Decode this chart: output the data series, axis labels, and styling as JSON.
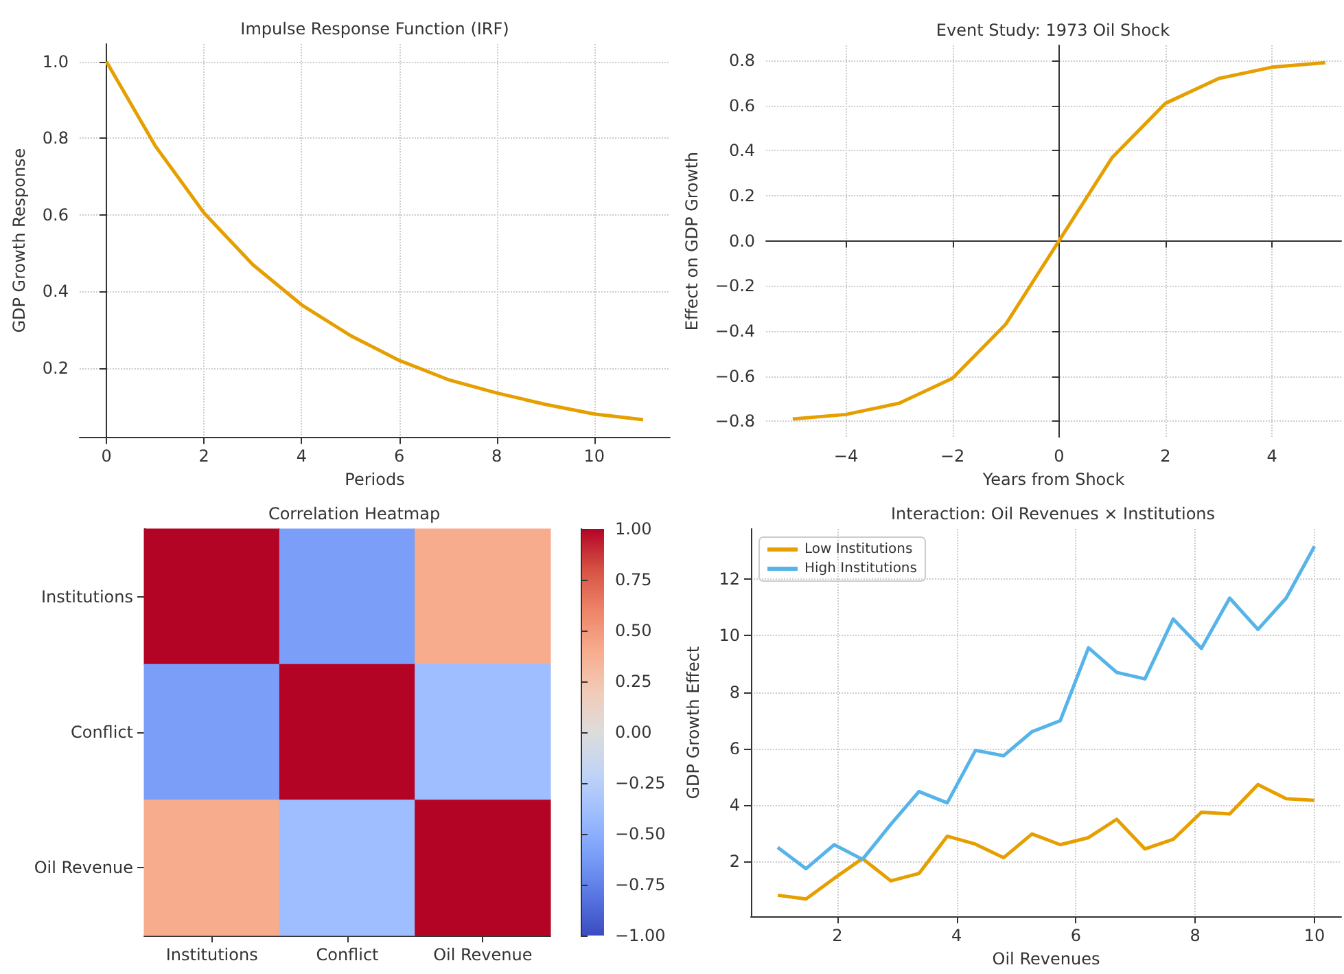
{
  "chart_data": [
    {
      "type": "line",
      "title": "Impulse Response Function (IRF)",
      "xlabel": "Periods",
      "ylabel": "GDP Growth Response",
      "x": [
        0,
        1,
        2,
        3,
        4,
        5,
        6,
        7,
        8,
        9,
        10,
        11
      ],
      "series": [
        {
          "color": "#e69f00",
          "values": [
            1.0,
            0.78,
            0.605,
            0.47,
            0.365,
            0.285,
            0.22,
            0.17,
            0.135,
            0.105,
            0.08,
            0.065
          ]
        }
      ],
      "xlim": [
        -0.55,
        11.55
      ],
      "ylim": [
        0.02,
        1.046
      ],
      "xticks": [
        {
          "value": 0,
          "label": "0"
        },
        {
          "value": 2,
          "label": "2"
        },
        {
          "value": 4,
          "label": "4"
        },
        {
          "value": 6,
          "label": "6"
        },
        {
          "value": 8,
          "label": "8"
        },
        {
          "value": 10,
          "label": "10"
        }
      ],
      "yticks": [
        {
          "value": 0.2,
          "label": "0.2"
        },
        {
          "value": 0.4,
          "label": "0.4"
        },
        {
          "value": 0.6,
          "label": "0.6"
        },
        {
          "value": 0.8,
          "label": "0.8"
        },
        {
          "value": 1.0,
          "label": "1.0"
        }
      ],
      "grid": true
    },
    {
      "type": "line",
      "title": "Event Study: 1973 Oil Shock",
      "xlabel": "Years from Shock",
      "ylabel": "Effect on GDP Growth",
      "x": [
        -5,
        -4,
        -3,
        -2,
        -1,
        0,
        1,
        2,
        3,
        4,
        5
      ],
      "series": [
        {
          "color": "#e69f00",
          "values": [
            -0.79,
            -0.77,
            -0.72,
            -0.61,
            -0.37,
            0.0,
            0.37,
            0.61,
            0.72,
            0.77,
            0.79
          ]
        }
      ],
      "xlim": [
        -5.5,
        5.3
      ],
      "ylim": [
        -0.87,
        0.867
      ],
      "xticks": [
        {
          "value": -4,
          "label": "−4"
        },
        {
          "value": -2,
          "label": "−2"
        },
        {
          "value": 0,
          "label": "0"
        },
        {
          "value": 2,
          "label": "2"
        },
        {
          "value": 4,
          "label": "4"
        }
      ],
      "yticks": [
        {
          "value": -0.8,
          "label": "−0.8"
        },
        {
          "value": -0.6,
          "label": "−0.6"
        },
        {
          "value": -0.4,
          "label": "−0.4"
        },
        {
          "value": -0.2,
          "label": "−0.2"
        },
        {
          "value": 0,
          "label": "0.0"
        },
        {
          "value": 0.2,
          "label": "0.2"
        },
        {
          "value": 0.4,
          "label": "0.4"
        },
        {
          "value": 0.6,
          "label": "0.6"
        },
        {
          "value": 0.8,
          "label": "0.8"
        }
      ],
      "grid": true
    },
    {
      "type": "heatmap",
      "title": "Correlation Heatmap",
      "categories": [
        "Institutions",
        "Conflict",
        "Oil Revenue"
      ],
      "y_categories": [
        "Institutions",
        "Conflict",
        "Oil Revenue"
      ],
      "cells": [
        [
          1.0,
          -0.6,
          0.4
        ],
        [
          -0.6,
          1.0,
          -0.4
        ],
        [
          0.4,
          -0.4,
          1.0
        ]
      ],
      "clim": [
        -1,
        1
      ],
      "cticks": [
        {
          "value": -1,
          "label": "−1.00"
        },
        {
          "value": -0.75,
          "label": "−0.75"
        },
        {
          "value": -0.5,
          "label": "−0.50"
        },
        {
          "value": -0.25,
          "label": "−0.25"
        },
        {
          "value": 0,
          "label": "0.00"
        },
        {
          "value": 0.25,
          "label": "0.25"
        },
        {
          "value": 0.5,
          "label": "0.50"
        },
        {
          "value": 0.75,
          "label": "0.75"
        },
        {
          "value": 1,
          "label": "1.00"
        }
      ]
    },
    {
      "type": "line",
      "title": "Interaction: Oil Revenues × Institutions",
      "xlabel": "Oil Revenues",
      "ylabel": "GDP Growth Effect",
      "x": [
        1,
        1.474,
        1.947,
        2.421,
        2.895,
        3.368,
        3.842,
        4.316,
        4.789,
        5.263,
        5.737,
        6.211,
        6.684,
        7.158,
        7.632,
        8.105,
        8.579,
        9.053,
        9.526,
        10
      ],
      "series": [
        {
          "name": "Low Institutions",
          "color": "#e69f00",
          "values": [
            0.81,
            0.68,
            1.41,
            2.11,
            1.32,
            1.58,
            2.9,
            2.62,
            2.14,
            2.98,
            2.6,
            2.85,
            3.5,
            2.45,
            2.79,
            3.75,
            3.69,
            4.73,
            4.23,
            4.17
          ]
        },
        {
          "name": "High Institutions",
          "color": "#56b4e9",
          "values": [
            2.5,
            1.75,
            2.6,
            2.08,
            3.32,
            4.48,
            4.08,
            5.94,
            5.75,
            6.6,
            6.99,
            9.57,
            8.7,
            8.47,
            10.59,
            9.55,
            11.33,
            10.22,
            11.33,
            13.16
          ]
        }
      ],
      "xlim": [
        0.55,
        10.45
      ],
      "ylim": [
        0.06,
        13.78
      ],
      "xticks": [
        {
          "value": 2,
          "label": "2"
        },
        {
          "value": 4,
          "label": "4"
        },
        {
          "value": 6,
          "label": "6"
        },
        {
          "value": 8,
          "label": "8"
        },
        {
          "value": 10,
          "label": "10"
        }
      ],
      "yticks": [
        {
          "value": 2,
          "label": "2"
        },
        {
          "value": 4,
          "label": "4"
        },
        {
          "value": 6,
          "label": "6"
        },
        {
          "value": 8,
          "label": "8"
        },
        {
          "value": 10,
          "label": "10"
        },
        {
          "value": 12,
          "label": "12"
        }
      ],
      "grid": true,
      "legend": "top left"
    }
  ]
}
